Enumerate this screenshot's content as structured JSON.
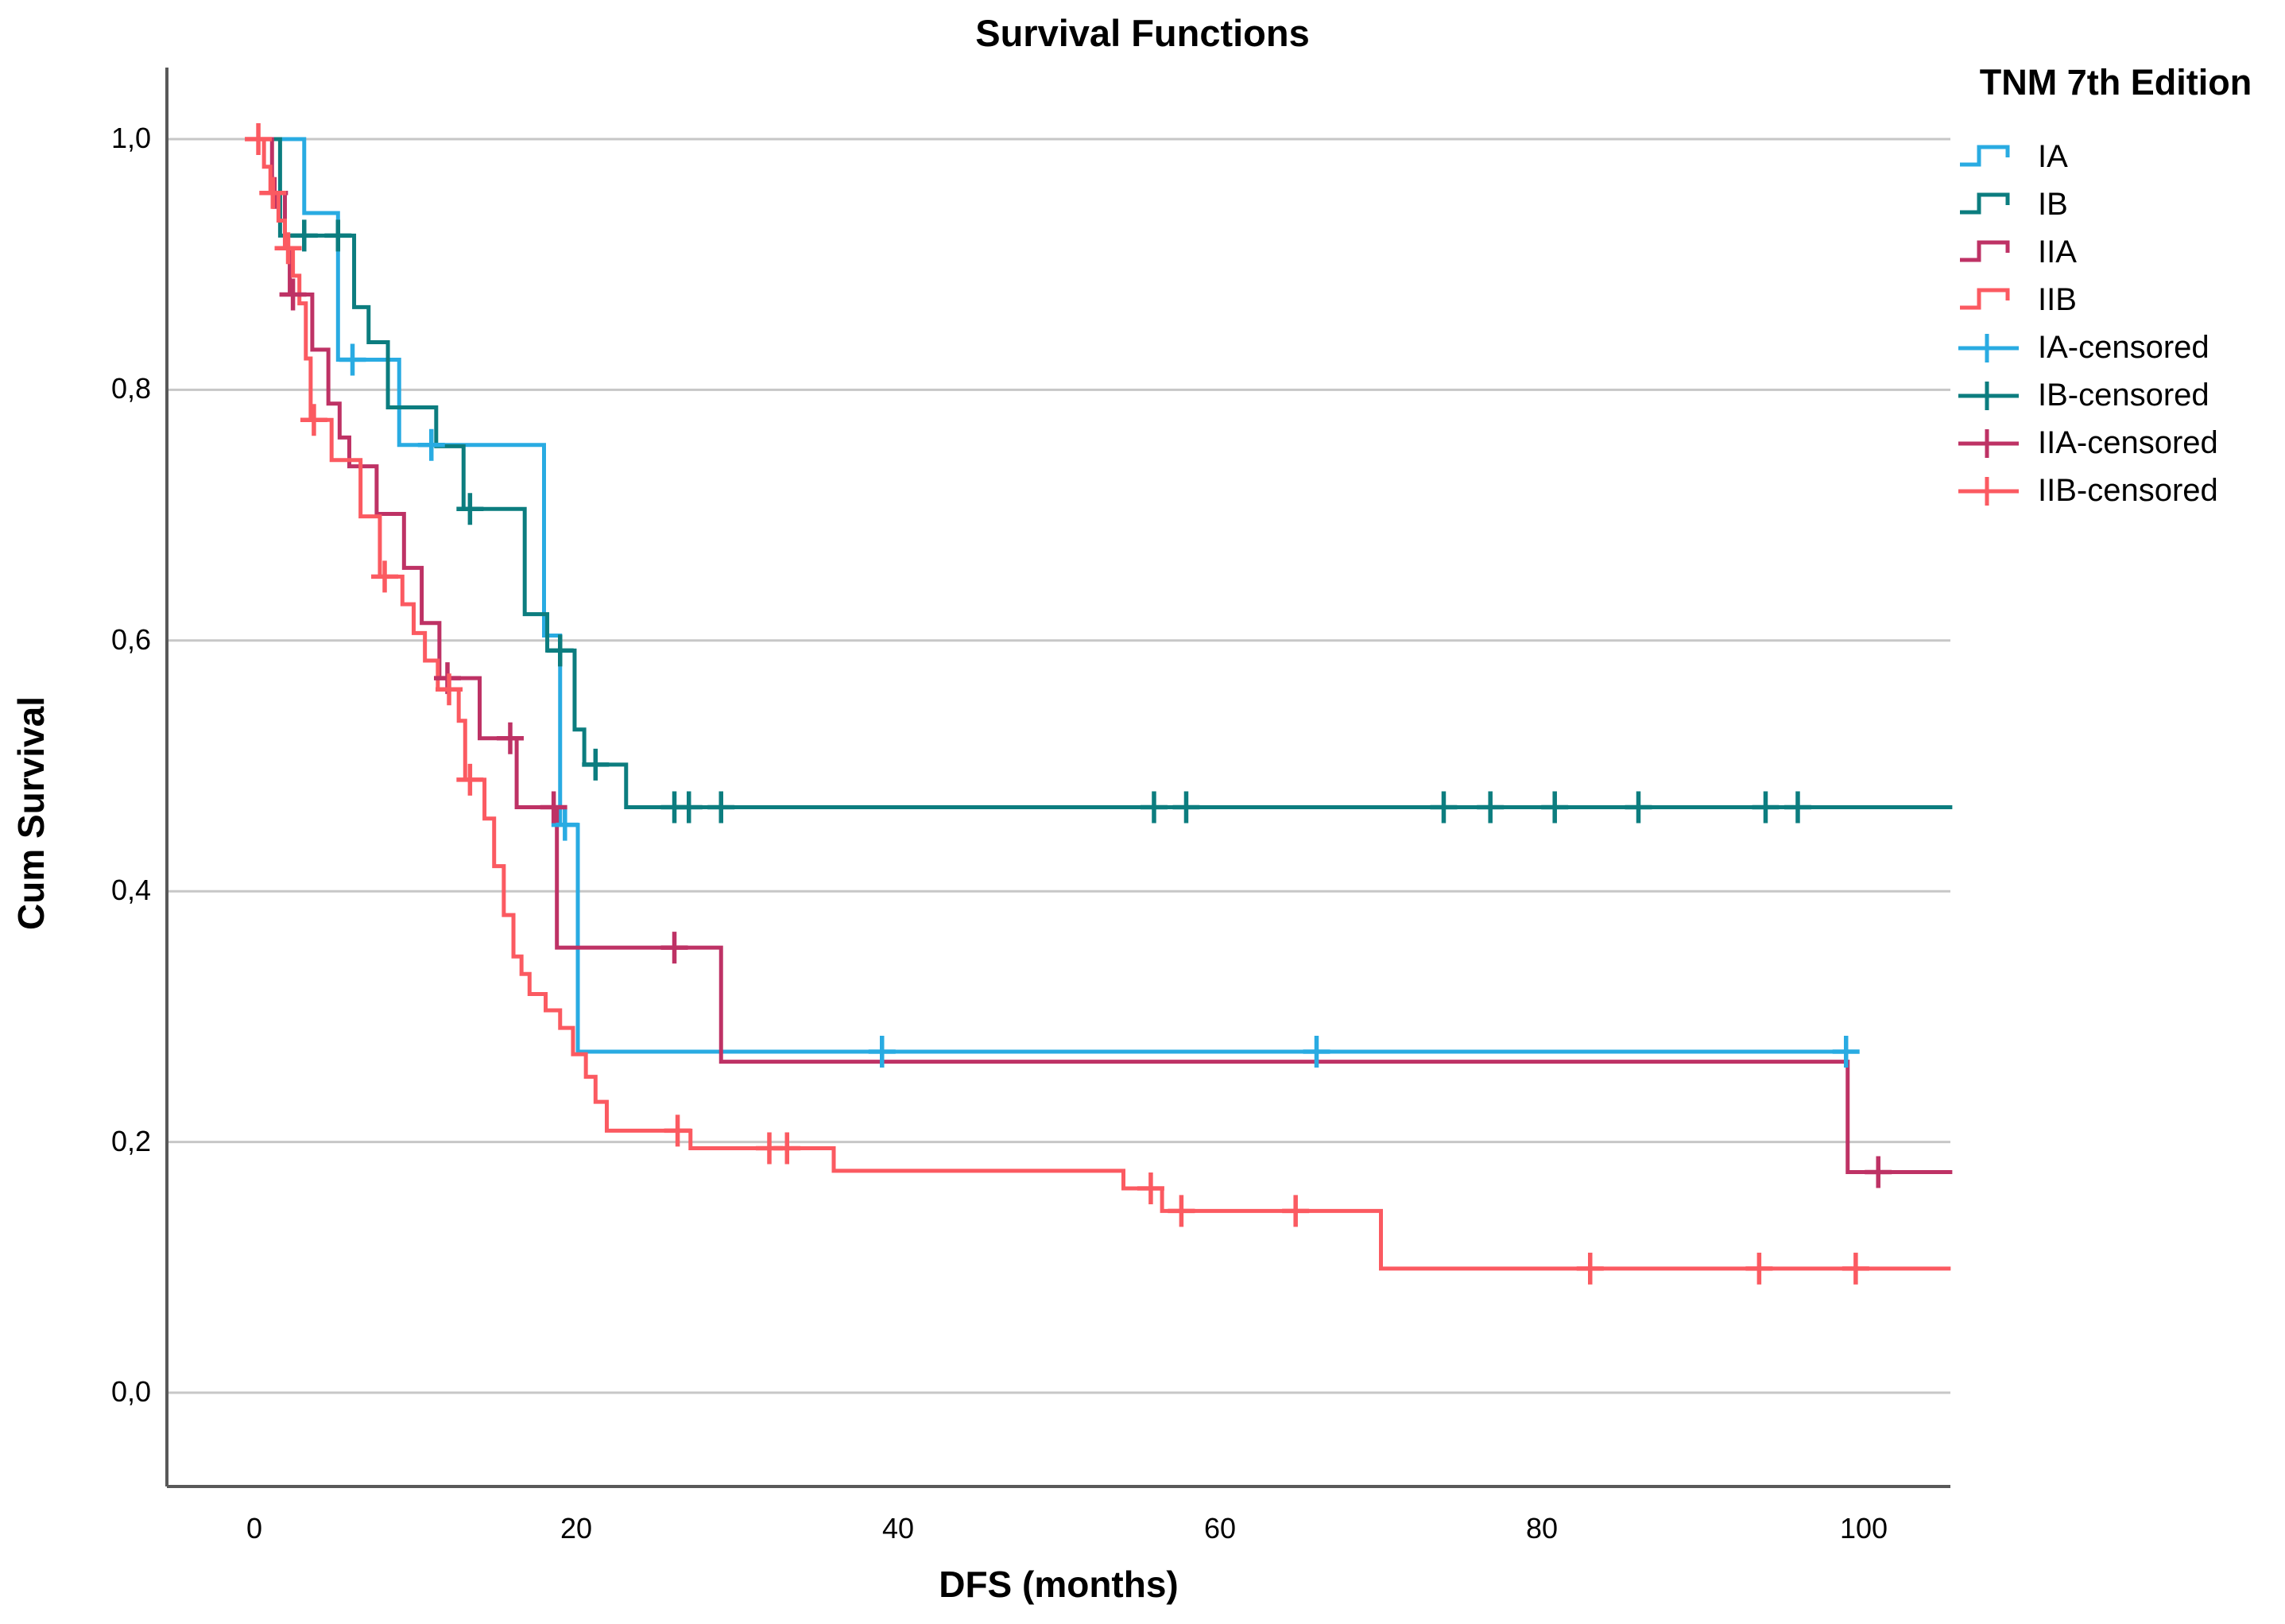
{
  "title": "Survival Functions",
  "axes": {
    "x": {
      "title": "DFS (months)",
      "tick_labels": [
        "0",
        "20",
        "40",
        "60",
        "80",
        "100"
      ],
      "tick_values": [
        0,
        20,
        40,
        60,
        80,
        100
      ]
    },
    "y": {
      "title": "Cum Survival",
      "tick_labels": [
        "1,0",
        "0,8",
        "0,6",
        "0,4",
        "0,2",
        "0,0"
      ],
      "tick_values": [
        1.0,
        0.8,
        0.6,
        0.4,
        0.2,
        0.0
      ]
    }
  },
  "legend": {
    "title": "TNM 7th Edition",
    "items": [
      {
        "label": "IA",
        "type": "step",
        "series": "IA"
      },
      {
        "label": "IB",
        "type": "step",
        "series": "IB"
      },
      {
        "label": "IIA",
        "type": "step",
        "series": "IIA"
      },
      {
        "label": "IIB",
        "type": "step",
        "series": "IIB"
      },
      {
        "label": "IA-censored",
        "type": "censored",
        "series": "IA"
      },
      {
        "label": "IB-censored",
        "type": "censored",
        "series": "IB"
      },
      {
        "label": "IIA-censored",
        "type": "censored",
        "series": "IIA"
      },
      {
        "label": "IIB-censored",
        "type": "censored",
        "series": "IIB"
      }
    ]
  },
  "colors": {
    "IA": "#29ABE2",
    "IB": "#0C7D7F",
    "IIA": "#BE3265",
    "IIB": "#FB5A61",
    "gridline": "#C7C7C7",
    "axis": "#595959",
    "text": "#000000"
  },
  "chart_data": {
    "type": "line",
    "subtype": "kaplan-meier-step",
    "title": "Survival Functions",
    "xlabel": "DFS (months)",
    "ylabel": "Cum Survival",
    "xlim": [
      -5.5,
      105.5
    ],
    "ylim": [
      0.0,
      1.0
    ],
    "x_ticks": [
      0,
      20,
      40,
      60,
      80,
      100
    ],
    "y_ticks": [
      1.0,
      0.8,
      0.6,
      0.4,
      0.2,
      0.0
    ],
    "grid": "horizontal",
    "legend_position": "right",
    "series": [
      {
        "name": "IA",
        "color": "#29ABE2",
        "end_x": 99.6,
        "steps": [
          [
            0,
            1.0
          ],
          [
            3.1,
            0.941
          ],
          [
            5.2,
            0.824
          ],
          [
            9.0,
            0.756
          ],
          [
            18.0,
            0.604
          ],
          [
            19.0,
            0.453
          ],
          [
            20.1,
            0.272
          ]
        ],
        "censored": [
          [
            6.1,
            0.824
          ],
          [
            11.0,
            0.756
          ],
          [
            19.3,
            0.453
          ],
          [
            39.0,
            0.272
          ],
          [
            66.0,
            0.272
          ],
          [
            98.9,
            0.272
          ]
        ]
      },
      {
        "name": "IB",
        "color": "#0C7D7F",
        "end_x": 105.5,
        "steps": [
          [
            0,
            1.0
          ],
          [
            1.6,
            0.923
          ],
          [
            6.2,
            0.866
          ],
          [
            7.1,
            0.838
          ],
          [
            8.3,
            0.786
          ],
          [
            11.3,
            0.755
          ],
          [
            13.0,
            0.705
          ],
          [
            16.8,
            0.621
          ],
          [
            18.2,
            0.592
          ],
          [
            19.9,
            0.529
          ],
          [
            20.5,
            0.501
          ],
          [
            23.1,
            0.467
          ]
        ],
        "censored": [
          [
            3.1,
            0.923
          ],
          [
            5.2,
            0.923
          ],
          [
            13.4,
            0.705
          ],
          [
            19.0,
            0.592
          ],
          [
            21.2,
            0.501
          ],
          [
            26.1,
            0.467
          ],
          [
            27.0,
            0.467
          ],
          [
            29.0,
            0.467
          ],
          [
            55.9,
            0.467
          ],
          [
            57.9,
            0.467
          ],
          [
            73.9,
            0.467
          ],
          [
            76.8,
            0.467
          ],
          [
            80.8,
            0.467
          ],
          [
            86.0,
            0.467
          ],
          [
            93.9,
            0.467
          ],
          [
            95.9,
            0.467
          ]
        ]
      },
      {
        "name": "IIA",
        "color": "#BE3265",
        "end_x": 105.5,
        "steps": [
          [
            0,
            1.0
          ],
          [
            1.1,
            0.957
          ],
          [
            1.9,
            0.913
          ],
          [
            2.2,
            0.876
          ],
          [
            3.6,
            0.832
          ],
          [
            4.6,
            0.789
          ],
          [
            5.3,
            0.762
          ],
          [
            5.9,
            0.739
          ],
          [
            7.6,
            0.701
          ],
          [
            9.3,
            0.658
          ],
          [
            10.4,
            0.614
          ],
          [
            11.5,
            0.57
          ],
          [
            14.0,
            0.522
          ],
          [
            16.3,
            0.467
          ],
          [
            18.8,
            0.355
          ],
          [
            29.0,
            0.264
          ],
          [
            99.0,
            0.176
          ]
        ],
        "censored": [
          [
            1.25,
            0.957
          ],
          [
            2.4,
            0.876
          ],
          [
            12.0,
            0.57
          ],
          [
            15.9,
            0.522
          ],
          [
            18.6,
            0.467
          ],
          [
            26.1,
            0.355
          ],
          [
            100.9,
            0.176
          ]
        ]
      },
      {
        "name": "IIB",
        "color": "#FB5A61",
        "end_x": 105.4,
        "steps": [
          [
            0,
            1.0
          ],
          [
            0.6,
            0.978
          ],
          [
            1.0,
            0.957
          ],
          [
            1.5,
            0.935
          ],
          [
            1.9,
            0.913
          ],
          [
            2.4,
            0.891
          ],
          [
            2.8,
            0.869
          ],
          [
            3.2,
            0.825
          ],
          [
            3.5,
            0.776
          ],
          [
            4.8,
            0.744
          ],
          [
            6.6,
            0.699
          ],
          [
            7.8,
            0.651
          ],
          [
            9.2,
            0.629
          ],
          [
            9.9,
            0.606
          ],
          [
            10.6,
            0.584
          ],
          [
            11.4,
            0.561
          ],
          [
            12.7,
            0.536
          ],
          [
            13.1,
            0.489
          ],
          [
            14.3,
            0.458
          ],
          [
            14.9,
            0.42
          ],
          [
            15.5,
            0.381
          ],
          [
            16.1,
            0.348
          ],
          [
            16.6,
            0.334
          ],
          [
            17.1,
            0.318
          ],
          [
            18.1,
            0.305
          ],
          [
            19.0,
            0.291
          ],
          [
            19.8,
            0.27
          ],
          [
            20.6,
            0.252
          ],
          [
            21.2,
            0.232
          ],
          [
            21.9,
            0.209
          ],
          [
            27.1,
            0.195
          ],
          [
            36.0,
            0.177
          ],
          [
            54.0,
            0.163
          ],
          [
            56.4,
            0.145
          ],
          [
            70.0,
            0.099
          ]
        ],
        "censored": [
          [
            0.25,
            1.0
          ],
          [
            1.15,
            0.957
          ],
          [
            2.1,
            0.913
          ],
          [
            3.7,
            0.776
          ],
          [
            8.1,
            0.651
          ],
          [
            12.1,
            0.561
          ],
          [
            13.4,
            0.489
          ],
          [
            26.3,
            0.209
          ],
          [
            32.0,
            0.195
          ],
          [
            33.1,
            0.195
          ],
          [
            55.7,
            0.163
          ],
          [
            57.6,
            0.145
          ],
          [
            64.7,
            0.145
          ],
          [
            83.0,
            0.099
          ],
          [
            93.5,
            0.099
          ],
          [
            99.5,
            0.099
          ]
        ]
      }
    ]
  }
}
